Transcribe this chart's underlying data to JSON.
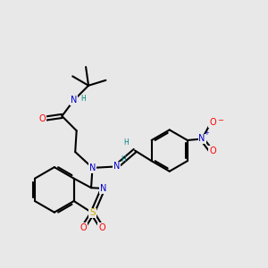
{
  "bg_color": "#e8e8e8",
  "atom_colors": {
    "C": "#000000",
    "N": "#0000cc",
    "O": "#ff0000",
    "S": "#ccaa00",
    "H": "#008080"
  },
  "bond_color": "#000000",
  "fig_size": [
    3.0,
    3.0
  ],
  "dpi": 100
}
